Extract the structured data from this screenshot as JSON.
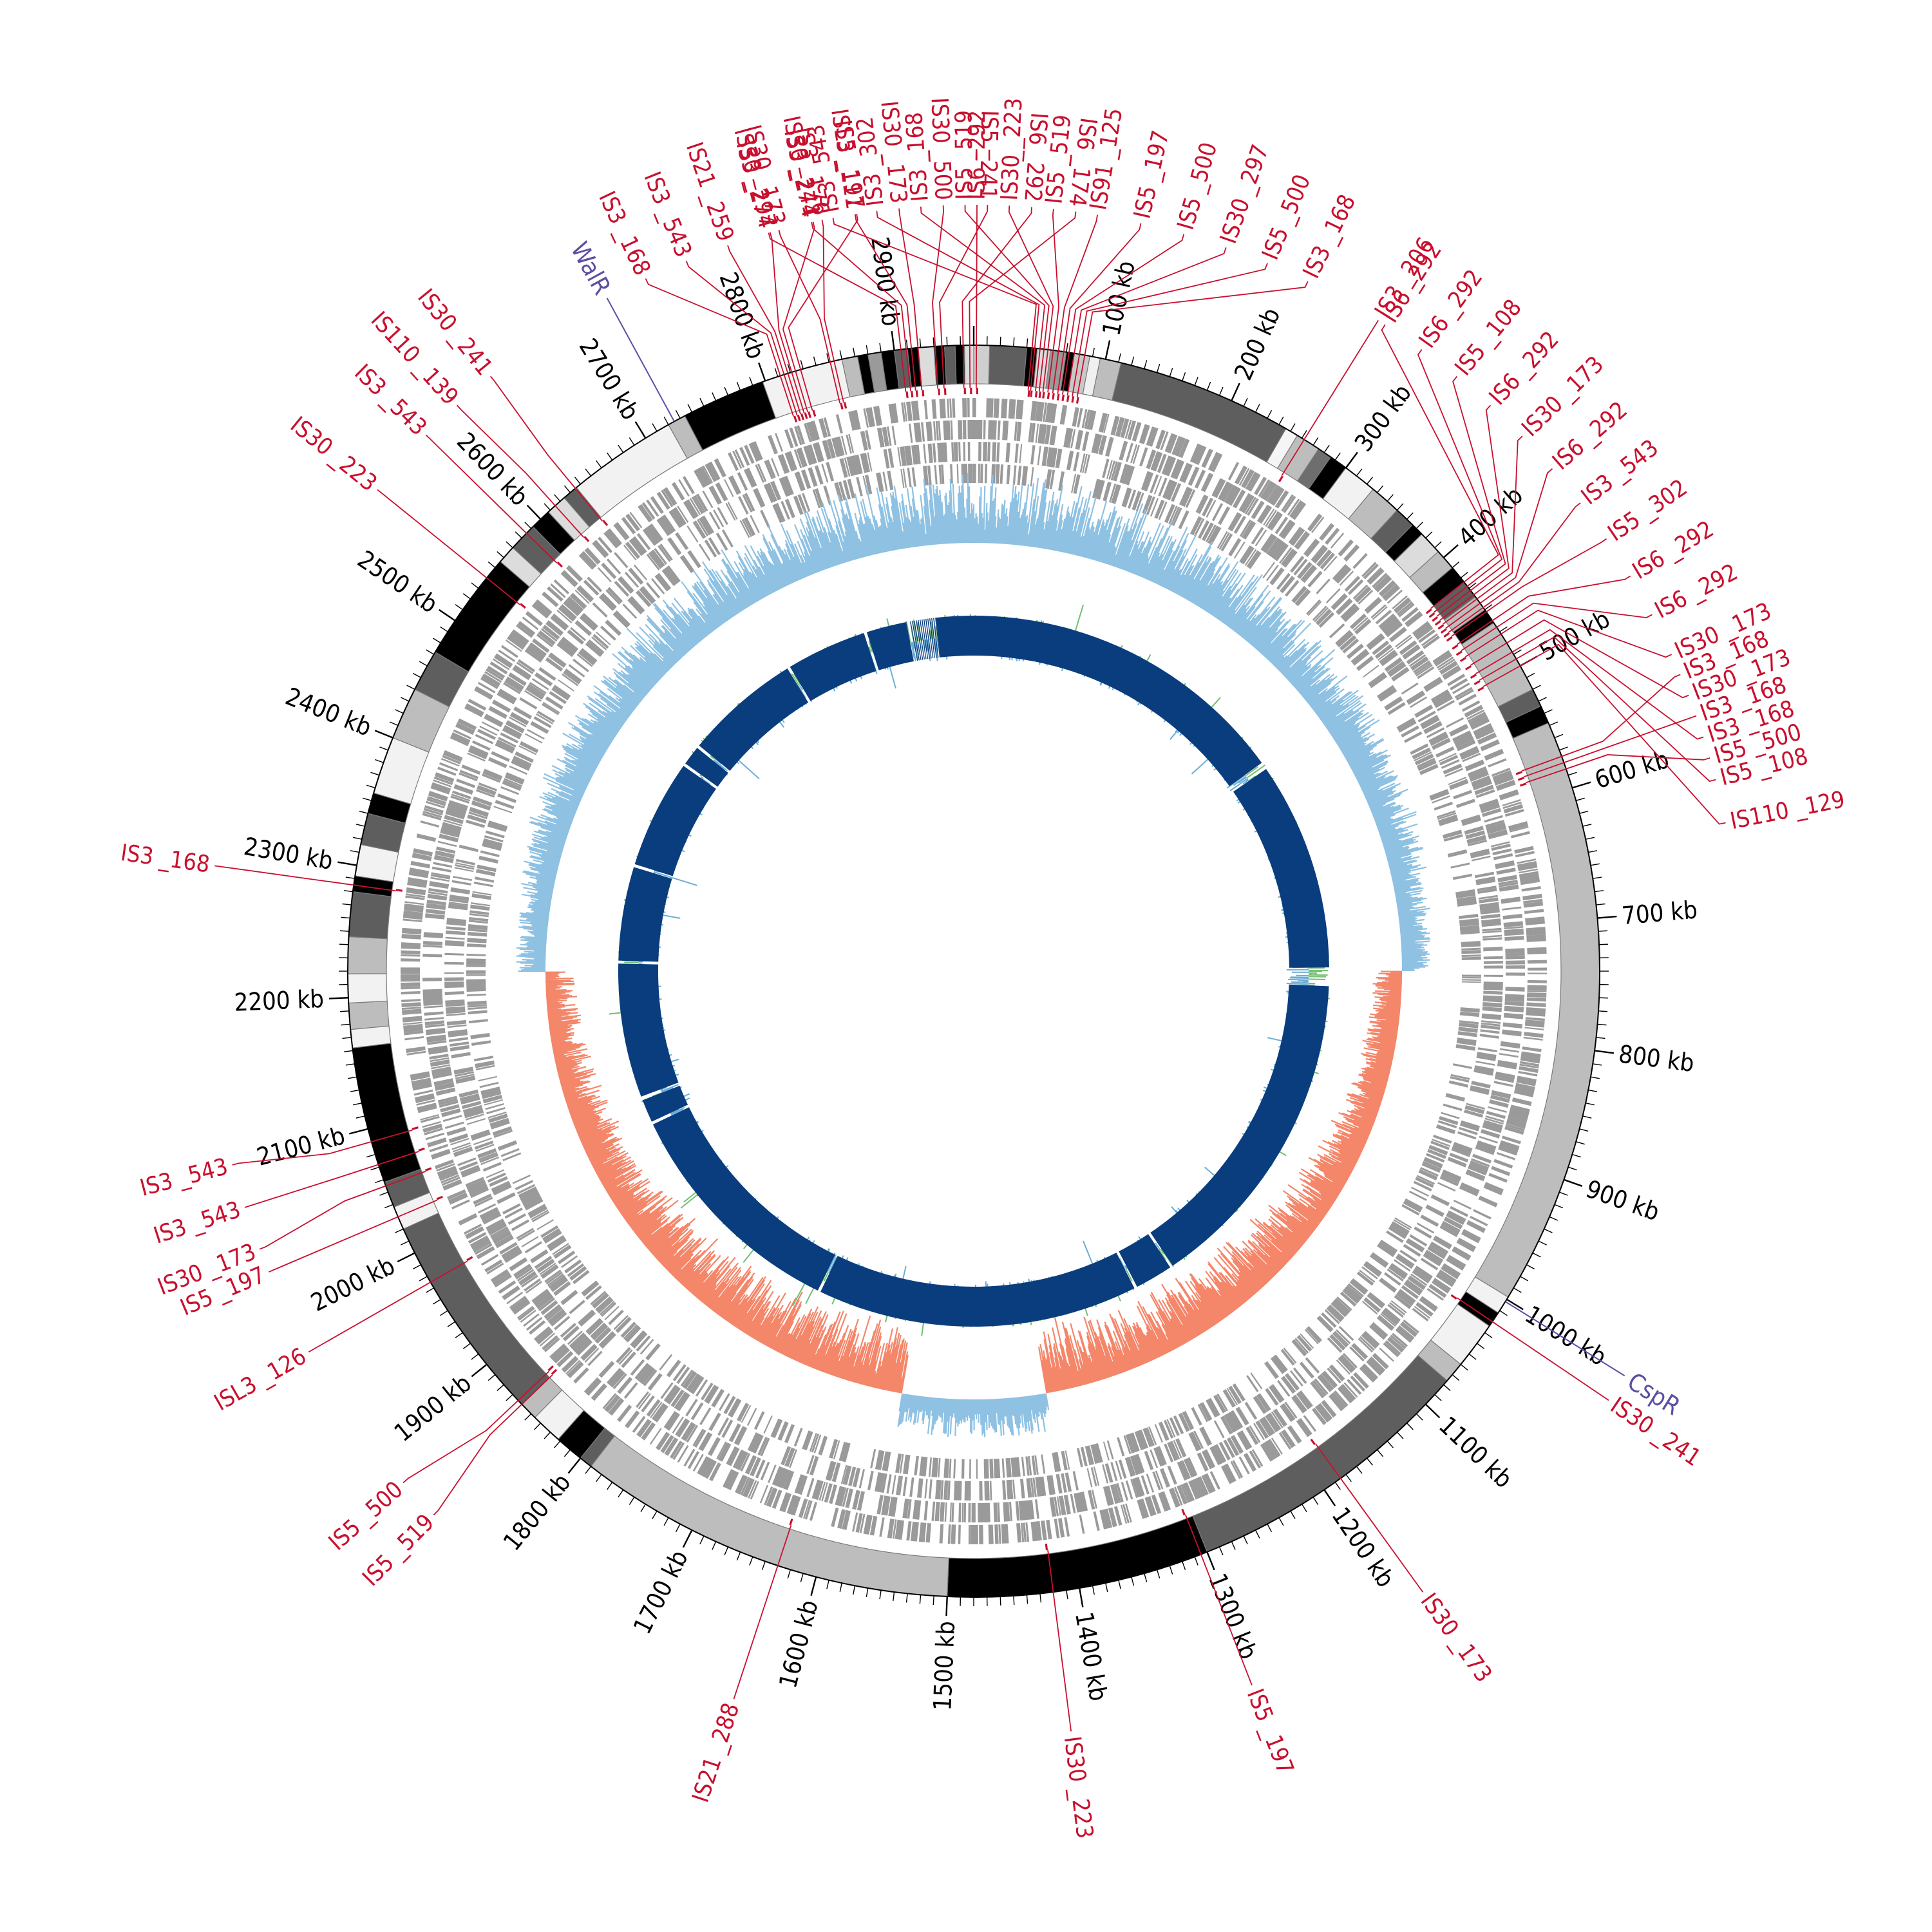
{
  "colors": {
    "is_element": "#c8102e",
    "regulator": "#5b4fa3",
    "genes": "#9a9a9a",
    "gc_skew_pos": "#8ec1e2",
    "gc_skew_neg": "#f4866a",
    "gc_content_pos": "#72bf72",
    "gc_content_neg": "#6aaed6",
    "contig": "#0a3d7e",
    "tick": "#000000"
  },
  "chart_data": {
    "type": "circular-genome-map",
    "genome_length_kb": 2960,
    "scale_labels": [
      {
        "kb": 100,
        "text": "100 kb"
      },
      {
        "kb": 200,
        "text": "200 kb"
      },
      {
        "kb": 300,
        "text": "300 kb"
      },
      {
        "kb": 400,
        "text": "400 kb"
      },
      {
        "kb": 500,
        "text": "500 kb"
      },
      {
        "kb": 600,
        "text": "600 kb"
      },
      {
        "kb": 700,
        "text": "700 kb"
      },
      {
        "kb": 800,
        "text": "800 kb"
      },
      {
        "kb": 900,
        "text": "900 kb"
      },
      {
        "kb": 1000,
        "text": "1000 kb"
      },
      {
        "kb": 1100,
        "text": "1100 kb"
      },
      {
        "kb": 1200,
        "text": "1200 kb"
      },
      {
        "kb": 1300,
        "text": "1300 kb"
      },
      {
        "kb": 1400,
        "text": "1400 kb"
      },
      {
        "kb": 1500,
        "text": "1500 kb"
      },
      {
        "kb": 1600,
        "text": "1600 kb"
      },
      {
        "kb": 1700,
        "text": "1700 kb"
      },
      {
        "kb": 1800,
        "text": "1800 kb"
      },
      {
        "kb": 1900,
        "text": "1900 kb"
      },
      {
        "kb": 2000,
        "text": "2000 kb"
      },
      {
        "kb": 2100,
        "text": "2100 kb"
      },
      {
        "kb": 2200,
        "text": "2200 kb"
      },
      {
        "kb": 2300,
        "text": "2300 kb"
      },
      {
        "kb": 2400,
        "text": "2400 kb"
      },
      {
        "kb": 2500,
        "text": "2500 kb"
      },
      {
        "kb": 2600,
        "text": "2600 kb"
      },
      {
        "kb": 2700,
        "text": "2700 kb"
      },
      {
        "kb": 2800,
        "text": "2800 kb"
      },
      {
        "kb": 2900,
        "text": "2900 kb"
      }
    ],
    "regulators": [
      {
        "name": "WalR",
        "kb": 2725
      },
      {
        "name": "CspR",
        "kb": 1002
      }
    ],
    "is_elements": [
      {
        "name": "IS3 _168",
        "kb": 2812
      },
      {
        "name": "IS3 _543",
        "kb": 2815
      },
      {
        "name": "IS21 _259",
        "kb": 2818
      },
      {
        "name": "IS30 _297",
        "kb": 2821
      },
      {
        "name": "IS30 _241",
        "kb": 2824
      },
      {
        "name": "IS5 _197",
        "kb": 2828
      },
      {
        "name": "IS30 _173",
        "kb": 2851
      },
      {
        "name": "IS3 _176",
        "kb": 2854
      },
      {
        "name": "IS3 _274",
        "kb": 2905
      },
      {
        "name": "IS3 _274",
        "kb": 2909
      },
      {
        "name": "ISL3 _111",
        "kb": 2913
      },
      {
        "name": "IS30 _173",
        "kb": 2918
      },
      {
        "name": "IS30 _500",
        "kb": 2931
      },
      {
        "name": "IS5 _241",
        "kb": 2936
      },
      {
        "name": "IS6 _292",
        "kb": 2952
      },
      {
        "name": "IS6 _174",
        "kb": 2957
      },
      {
        "name": "IS6 _292",
        "kb": 2
      },
      {
        "name": "IS3 _543",
        "kb": 44
      },
      {
        "name": "IS3 _302",
        "kb": 46
      },
      {
        "name": "IS3 _168",
        "kb": 50
      },
      {
        "name": "IS5 _519",
        "kb": 53
      },
      {
        "name": "IS30 _223",
        "kb": 56
      },
      {
        "name": "IS5 _519",
        "kb": 60
      },
      {
        "name": "IS91 _125",
        "kb": 64
      },
      {
        "name": "IS5 _197",
        "kb": 68
      },
      {
        "name": "IS5 _500",
        "kb": 72
      },
      {
        "name": "IS30 _297",
        "kb": 76
      },
      {
        "name": "IS5 _500",
        "kb": 80
      },
      {
        "name": "IS3 _168",
        "kb": 84
      },
      {
        "name": "IS3 _206",
        "kb": 262
      },
      {
        "name": "IS6 _292",
        "kb": 424
      },
      {
        "name": "IS6 _292",
        "kb": 428
      },
      {
        "name": "IS5 _108",
        "kb": 432
      },
      {
        "name": "IS6 _292",
        "kb": 436
      },
      {
        "name": "IS30 _173",
        "kb": 440
      },
      {
        "name": "IS6 _292",
        "kb": 444
      },
      {
        "name": "IS3 _543",
        "kb": 448
      },
      {
        "name": "IS5 _302",
        "kb": 452
      },
      {
        "name": "IS6 _292",
        "kb": 460
      },
      {
        "name": "IS6 _292",
        "kb": 466
      },
      {
        "name": "IS30 _173",
        "kb": 472
      },
      {
        "name": "IS30 _173",
        "kb": 480
      },
      {
        "name": "IS3 _168",
        "kb": 488
      },
      {
        "name": "IS5 _108",
        "kb": 494
      },
      {
        "name": "IS110 _129",
        "kb": 500
      },
      {
        "name": "IS3 _168",
        "kb": 575
      },
      {
        "name": "IS3 _168",
        "kb": 580
      },
      {
        "name": "IS5 _500",
        "kb": 585
      },
      {
        "name": "IS30 _241",
        "kb": 1020
      },
      {
        "name": "IS30 _173",
        "kb": 1185
      },
      {
        "name": "IS5 _197",
        "kb": 1305
      },
      {
        "name": "IS30 _223",
        "kb": 1420
      },
      {
        "name": "IS21 _288",
        "kb": 1630
      },
      {
        "name": "IS5 _519",
        "kb": 1860
      },
      {
        "name": "IS5 _500",
        "kb": 1864
      },
      {
        "name": "ISL3 _126",
        "kb": 1975
      },
      {
        "name": "IS5 _197",
        "kb": 2030
      },
      {
        "name": "IS30 _173",
        "kb": 2055
      },
      {
        "name": "IS3 _543",
        "kb": 2072
      },
      {
        "name": "IS3 _543",
        "kb": 2090
      },
      {
        "name": "IS3 _168",
        "kb": 2285
      },
      {
        "name": "IS30 _223",
        "kb": 2540
      },
      {
        "name": "IS3 _543",
        "kb": 2585
      },
      {
        "name": "IS110 _139",
        "kb": 2615
      },
      {
        "name": "IS30 _241",
        "kb": 2635
      }
    ],
    "segments": [
      {
        "start": 0,
        "end": 12,
        "shade": "#cfcfcf"
      },
      {
        "start": 12,
        "end": 40,
        "shade": "#5e5e5e"
      },
      {
        "start": 40,
        "end": 48,
        "shade": "#000000"
      },
      {
        "start": 48,
        "end": 58,
        "shade": "#dcdcdc"
      },
      {
        "start": 58,
        "end": 70,
        "shade": "#9a9a9a"
      },
      {
        "start": 70,
        "end": 76,
        "shade": "#000000"
      },
      {
        "start": 76,
        "end": 88,
        "shade": "#c8c8c8"
      },
      {
        "start": 88,
        "end": 96,
        "shade": "#f0f0f0"
      },
      {
        "start": 96,
        "end": 112,
        "shade": "#bdbdbd"
      },
      {
        "start": 112,
        "end": 246,
        "shade": "#5e5e5e"
      },
      {
        "start": 246,
        "end": 256,
        "shade": "#f5f5f5"
      },
      {
        "start": 256,
        "end": 275,
        "shade": "#bdbdbd"
      },
      {
        "start": 275,
        "end": 286,
        "shade": "#6e6e6e"
      },
      {
        "start": 286,
        "end": 300,
        "shade": "#000000"
      },
      {
        "start": 300,
        "end": 326,
        "shade": "#f2f2f2"
      },
      {
        "start": 326,
        "end": 350,
        "shade": "#bdbdbd"
      },
      {
        "start": 350,
        "end": 366,
        "shade": "#5e5e5e"
      },
      {
        "start": 366,
        "end": 376,
        "shade": "#000000"
      },
      {
        "start": 376,
        "end": 394,
        "shade": "#dcdcdc"
      },
      {
        "start": 394,
        "end": 410,
        "shade": "#bdbdbd"
      },
      {
        "start": 410,
        "end": 424,
        "shade": "#000000"
      },
      {
        "start": 424,
        "end": 438,
        "shade": "#5e5e5e"
      },
      {
        "start": 438,
        "end": 450,
        "shade": "#bdbdbd"
      },
      {
        "start": 450,
        "end": 462,
        "shade": "#000000"
      },
      {
        "start": 462,
        "end": 520,
        "shade": "#bdbdbd"
      },
      {
        "start": 520,
        "end": 534,
        "shade": "#5e5e5e"
      },
      {
        "start": 534,
        "end": 548,
        "shade": "#000000"
      },
      {
        "start": 548,
        "end": 998,
        "shade": "#bdbdbd"
      },
      {
        "start": 998,
        "end": 1012,
        "shade": "#f2f2f2"
      },
      {
        "start": 1012,
        "end": 1024,
        "shade": "#000000"
      },
      {
        "start": 1024,
        "end": 1060,
        "shade": "#f2f2f2"
      },
      {
        "start": 1060,
        "end": 1076,
        "shade": "#bdbdbd"
      },
      {
        "start": 1076,
        "end": 1300,
        "shade": "#5e5e5e"
      },
      {
        "start": 1300,
        "end": 1500,
        "shade": "#000000"
      },
      {
        "start": 1500,
        "end": 1790,
        "shade": "#bdbdbd"
      },
      {
        "start": 1790,
        "end": 1800,
        "shade": "#5e5e5e"
      },
      {
        "start": 1800,
        "end": 1822,
        "shade": "#000000"
      },
      {
        "start": 1822,
        "end": 1846,
        "shade": "#f2f2f2"
      },
      {
        "start": 1846,
        "end": 1860,
        "shade": "#bdbdbd"
      },
      {
        "start": 1860,
        "end": 2020,
        "shade": "#5e5e5e"
      },
      {
        "start": 2020,
        "end": 2038,
        "shade": "#f2f2f2"
      },
      {
        "start": 2038,
        "end": 2058,
        "shade": "#5e5e5e"
      },
      {
        "start": 2058,
        "end": 2162,
        "shade": "#000000"
      },
      {
        "start": 2162,
        "end": 2176,
        "shade": "#f2f2f2"
      },
      {
        "start": 2176,
        "end": 2196,
        "shade": "#bdbdbd"
      },
      {
        "start": 2196,
        "end": 2218,
        "shade": "#f2f2f2"
      },
      {
        "start": 2218,
        "end": 2246,
        "shade": "#bdbdbd"
      },
      {
        "start": 2246,
        "end": 2280,
        "shade": "#5e5e5e"
      },
      {
        "start": 2280,
        "end": 2292,
        "shade": "#000000"
      },
      {
        "start": 2292,
        "end": 2316,
        "shade": "#f2f2f2"
      },
      {
        "start": 2316,
        "end": 2340,
        "shade": "#5e5e5e"
      },
      {
        "start": 2340,
        "end": 2356,
        "shade": "#000000"
      },
      {
        "start": 2356,
        "end": 2400,
        "shade": "#f2f2f2"
      },
      {
        "start": 2400,
        "end": 2440,
        "shade": "#bdbdbd"
      },
      {
        "start": 2440,
        "end": 2472,
        "shade": "#5e5e5e"
      },
      {
        "start": 2472,
        "end": 2556,
        "shade": "#000000"
      },
      {
        "start": 2556,
        "end": 2570,
        "shade": "#dcdcdc"
      },
      {
        "start": 2570,
        "end": 2592,
        "shade": "#5e5e5e"
      },
      {
        "start": 2592,
        "end": 2608,
        "shade": "#000000"
      },
      {
        "start": 2608,
        "end": 2624,
        "shade": "#dcdcdc"
      },
      {
        "start": 2624,
        "end": 2636,
        "shade": "#5e5e5e"
      },
      {
        "start": 2636,
        "end": 2720,
        "shade": "#f2f2f2"
      },
      {
        "start": 2720,
        "end": 2734,
        "shade": "#bdbdbd"
      },
      {
        "start": 2734,
        "end": 2798,
        "shade": "#000000"
      },
      {
        "start": 2798,
        "end": 2860,
        "shade": "#f2f2f2"
      },
      {
        "start": 2860,
        "end": 2872,
        "shade": "#bdbdbd"
      },
      {
        "start": 2872,
        "end": 2880,
        "shade": "#000000"
      },
      {
        "start": 2880,
        "end": 2890,
        "shade": "#9a9a9a"
      },
      {
        "start": 2890,
        "end": 2900,
        "shade": "#000000"
      },
      {
        "start": 2900,
        "end": 2910,
        "shade": "#5e5e5e"
      },
      {
        "start": 2910,
        "end": 2918,
        "shade": "#000000"
      },
      {
        "start": 2918,
        "end": 2930,
        "shade": "#dcdcdc"
      },
      {
        "start": 2930,
        "end": 2938,
        "shade": "#000000"
      },
      {
        "start": 2938,
        "end": 2946,
        "shade": "#5e5e5e"
      },
      {
        "start": 2946,
        "end": 2953,
        "shade": "#000000"
      },
      {
        "start": 2953,
        "end": 2960,
        "shade": "#dcdcdc"
      }
    ],
    "contigs": [
      {
        "start": 2910,
        "end": 445
      },
      {
        "start": 455,
        "end": 735
      },
      {
        "start": 760,
        "end": 1200
      },
      {
        "start": 1204,
        "end": 1255
      },
      {
        "start": 1259,
        "end": 1690
      },
      {
        "start": 1694,
        "end": 2010
      },
      {
        "start": 2014,
        "end": 2045
      },
      {
        "start": 2050,
        "end": 2230
      },
      {
        "start": 2234,
        "end": 2360
      },
      {
        "start": 2364,
        "end": 2510
      },
      {
        "start": 2514,
        "end": 2540
      },
      {
        "start": 2544,
        "end": 2700
      },
      {
        "start": 2704,
        "end": 2812
      },
      {
        "start": 2816,
        "end": 2870
      }
    ]
  }
}
